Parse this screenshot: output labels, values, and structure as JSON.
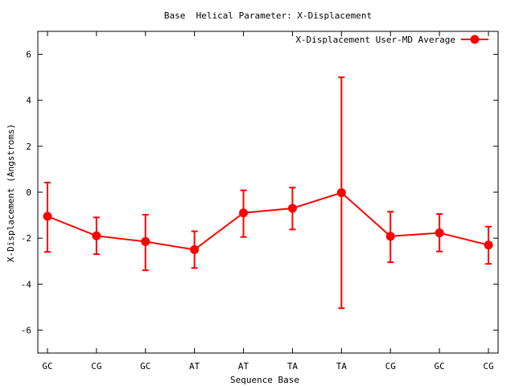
{
  "chart_data": {
    "type": "line",
    "title": "Base  Helical Parameter: X-Displacement",
    "xlabel": "Sequence Base",
    "ylabel": "X-Displacement (Angstroms)",
    "categories": [
      "GC",
      "CG",
      "GC",
      "AT",
      "AT",
      "TA",
      "TA",
      "CG",
      "GC",
      "CG"
    ],
    "ylim": [
      -7,
      7
    ],
    "yticks": [
      -6,
      -4,
      -2,
      0,
      2,
      4,
      6
    ],
    "grid": false,
    "legend_position": "top-right",
    "series": [
      {
        "name": "X-Displacement User-MD Average",
        "color": "#ff0000",
        "marker": "circle",
        "values": [
          -1.05,
          -1.9,
          -2.15,
          -2.5,
          -0.9,
          -0.7,
          -0.02,
          -1.92,
          -1.77,
          -2.3
        ],
        "error_low": [
          -2.6,
          -2.7,
          -3.4,
          -3.3,
          -1.95,
          -1.62,
          -5.05,
          -3.05,
          -2.58,
          -3.12
        ],
        "error_high": [
          0.42,
          -1.1,
          -0.98,
          -1.7,
          0.08,
          0.2,
          5.0,
          -0.85,
          -0.95,
          -1.5
        ]
      }
    ]
  }
}
